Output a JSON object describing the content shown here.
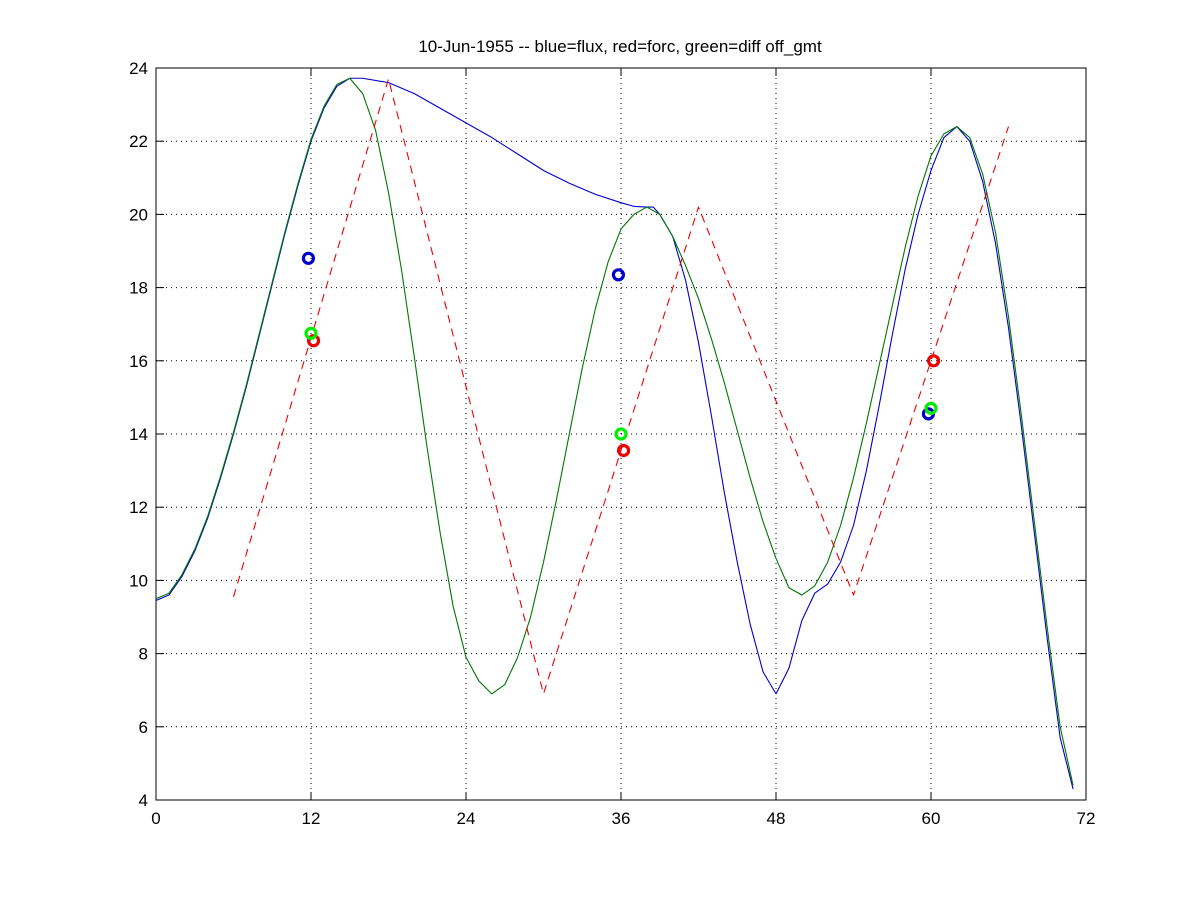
{
  "chart_data": {
    "type": "line",
    "title": "10-Jun-1955 -- blue=flux, red=forc, green=diff off_gmt",
    "xlabel": "",
    "ylabel": "",
    "xlim": [
      0,
      72
    ],
    "ylim": [
      4,
      24
    ],
    "xticks": [
      0,
      12,
      24,
      36,
      48,
      60,
      72
    ],
    "yticks": [
      4,
      6,
      8,
      10,
      12,
      14,
      16,
      18,
      20,
      22,
      24
    ],
    "grid": true,
    "colors": {
      "flux": "#0000cc",
      "forc": "#ee0000",
      "diff": "#007700",
      "marker_green": "#00ee00"
    },
    "series": [
      {
        "name": "flux",
        "color": "#0000cc",
        "style": "solid",
        "points": [
          [
            0,
            9.45
          ],
          [
            1,
            9.6
          ],
          [
            2,
            10.1
          ],
          [
            3,
            10.8
          ],
          [
            4,
            11.7
          ],
          [
            5,
            12.8
          ],
          [
            6,
            14.0
          ],
          [
            7,
            15.3
          ],
          [
            8,
            16.7
          ],
          [
            9,
            18.1
          ],
          [
            10,
            19.5
          ],
          [
            11,
            20.8
          ],
          [
            12,
            22.0
          ],
          [
            13,
            22.9
          ],
          [
            14,
            23.5
          ],
          [
            15,
            23.72
          ],
          [
            16,
            23.72
          ],
          [
            18,
            23.6
          ],
          [
            20,
            23.3
          ],
          [
            22,
            22.9
          ],
          [
            24,
            22.5
          ],
          [
            26,
            22.1
          ],
          [
            28,
            21.65
          ],
          [
            30,
            21.2
          ],
          [
            32,
            20.85
          ],
          [
            34,
            20.55
          ],
          [
            36,
            20.32
          ],
          [
            37,
            20.22
          ],
          [
            38,
            20.2
          ],
          [
            38.5,
            20.2
          ],
          [
            39,
            20.0
          ],
          [
            40,
            19.4
          ],
          [
            41,
            18.2
          ],
          [
            42,
            16.5
          ],
          [
            43,
            14.5
          ],
          [
            44,
            12.4
          ],
          [
            45,
            10.5
          ],
          [
            46,
            8.8
          ],
          [
            47,
            7.5
          ],
          [
            48,
            6.9
          ],
          [
            49,
            7.6
          ],
          [
            50,
            8.9
          ],
          [
            51,
            9.65
          ],
          [
            52,
            9.9
          ],
          [
            53,
            10.5
          ],
          [
            54,
            11.5
          ],
          [
            55,
            13.0
          ],
          [
            56,
            14.8
          ],
          [
            57,
            16.7
          ],
          [
            58,
            18.5
          ],
          [
            59,
            20.0
          ],
          [
            60,
            21.2
          ],
          [
            61,
            22.1
          ],
          [
            62,
            22.4
          ],
          [
            63,
            22.0
          ],
          [
            64,
            20.9
          ],
          [
            65,
            19.2
          ],
          [
            66,
            16.9
          ],
          [
            67,
            14.2
          ],
          [
            68,
            11.3
          ],
          [
            69,
            8.4
          ],
          [
            70,
            5.7
          ],
          [
            71,
            4.3
          ]
        ]
      },
      {
        "name": "diff",
        "color": "#007700",
        "style": "solid",
        "points": [
          [
            0,
            9.5
          ],
          [
            1,
            9.65
          ],
          [
            2,
            10.15
          ],
          [
            3,
            10.85
          ],
          [
            4,
            11.75
          ],
          [
            5,
            12.85
          ],
          [
            6,
            14.05
          ],
          [
            7,
            15.35
          ],
          [
            8,
            16.75
          ],
          [
            9,
            18.15
          ],
          [
            10,
            19.55
          ],
          [
            11,
            20.85
          ],
          [
            12,
            22.05
          ],
          [
            13,
            22.95
          ],
          [
            14,
            23.55
          ],
          [
            15,
            23.72
          ],
          [
            16,
            23.3
          ],
          [
            17,
            22.3
          ],
          [
            18,
            20.6
          ],
          [
            19,
            18.5
          ],
          [
            20,
            16.1
          ],
          [
            21,
            13.6
          ],
          [
            22,
            11.3
          ],
          [
            23,
            9.3
          ],
          [
            24,
            7.9
          ],
          [
            25,
            7.25
          ],
          [
            26,
            6.9
          ],
          [
            27,
            7.15
          ],
          [
            28,
            7.9
          ],
          [
            29,
            9.0
          ],
          [
            30,
            10.5
          ],
          [
            31,
            12.2
          ],
          [
            32,
            14.0
          ],
          [
            33,
            15.8
          ],
          [
            34,
            17.4
          ],
          [
            35,
            18.7
          ],
          [
            36,
            19.6
          ],
          [
            37,
            20.0
          ],
          [
            38,
            20.2
          ],
          [
            39,
            20.0
          ],
          [
            40,
            19.4
          ],
          [
            41,
            18.6
          ],
          [
            42,
            17.7
          ],
          [
            43,
            16.6
          ],
          [
            44,
            15.4
          ],
          [
            45,
            14.1
          ],
          [
            46,
            12.8
          ],
          [
            47,
            11.6
          ],
          [
            48,
            10.6
          ],
          [
            49,
            9.8
          ],
          [
            50,
            9.6
          ],
          [
            51,
            9.85
          ],
          [
            52,
            10.5
          ],
          [
            53,
            11.5
          ],
          [
            54,
            12.8
          ],
          [
            55,
            14.3
          ],
          [
            56,
            15.9
          ],
          [
            57,
            17.5
          ],
          [
            58,
            19.1
          ],
          [
            59,
            20.5
          ],
          [
            60,
            21.6
          ],
          [
            61,
            22.2
          ],
          [
            62,
            22.4
          ],
          [
            63,
            22.1
          ],
          [
            64,
            21.1
          ],
          [
            65,
            19.5
          ],
          [
            66,
            17.2
          ],
          [
            67,
            14.5
          ],
          [
            68,
            11.6
          ],
          [
            69,
            8.7
          ],
          [
            70,
            6.0
          ],
          [
            71,
            4.4
          ]
        ]
      },
      {
        "name": "forc",
        "color": "#ee0000",
        "style": "dashed",
        "points": [
          [
            6,
            9.55
          ],
          [
            18,
            23.7
          ],
          [
            30,
            6.9
          ],
          [
            42,
            20.2
          ],
          [
            54,
            9.6
          ],
          [
            66,
            22.4
          ]
        ]
      }
    ],
    "markers": [
      {
        "series": "flux",
        "color": "#0000cc",
        "x": 11.8,
        "y": 18.8
      },
      {
        "series": "flux",
        "color": "#0000cc",
        "x": 35.8,
        "y": 18.35
      },
      {
        "series": "flux",
        "color": "#0000cc",
        "x": 59.8,
        "y": 14.55
      },
      {
        "series": "forc",
        "color": "#ee0000",
        "x": 12.2,
        "y": 16.55
      },
      {
        "series": "forc",
        "color": "#ee0000",
        "x": 36.2,
        "y": 13.55
      },
      {
        "series": "forc",
        "color": "#ee0000",
        "x": 60.2,
        "y": 16.0
      },
      {
        "series": "diff",
        "color": "#00ee00",
        "x": 12.0,
        "y": 16.75
      },
      {
        "series": "diff",
        "color": "#00ee00",
        "x": 36.0,
        "y": 14.0
      },
      {
        "series": "diff",
        "color": "#00ee00",
        "x": 60.0,
        "y": 14.7
      }
    ]
  }
}
